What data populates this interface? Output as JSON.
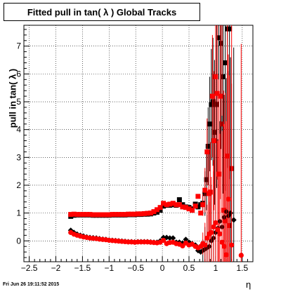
{
  "page": {
    "title": "Fitted pull in tan( λ )  Global Tracks",
    "timestamp": "Fri Jun 26 19:11:52 2015"
  },
  "chart_data": {
    "type": "scatter",
    "title": "Fitted pull in tan( λ )  Global Tracks",
    "xlabel": "η",
    "ylabel": "pull in tan( λ )",
    "xlim": [
      -2.6,
      1.7
    ],
    "ylim": [
      -0.75,
      7.75
    ],
    "xticks": [
      -2.5,
      -2,
      -1.5,
      -1,
      -0.5,
      0,
      0.5,
      1,
      1.5
    ],
    "xtick_labels": [
      "−2.5",
      "−2",
      "−1.5",
      "−1",
      "−0.5",
      "0",
      "0.5",
      "1",
      "1.5"
    ],
    "yticks": [
      0,
      1,
      2,
      3,
      4,
      5,
      6,
      7
    ],
    "ytick_labels": [
      "0",
      "1",
      "2",
      "3",
      "4",
      "5",
      "6",
      "7"
    ],
    "grid": true,
    "series": [
      {
        "color": "#000000",
        "marker": "square",
        "points": [
          [
            -1.72,
            0.88
          ],
          [
            -1.66,
            0.92
          ],
          [
            -1.6,
            0.93
          ],
          [
            -1.54,
            0.93
          ],
          [
            -1.48,
            0.93
          ],
          [
            -1.42,
            0.93
          ],
          [
            -1.36,
            0.93
          ],
          [
            -1.3,
            0.92
          ],
          [
            -1.24,
            0.92
          ],
          [
            -1.18,
            0.92
          ],
          [
            -1.12,
            0.92
          ],
          [
            -1.06,
            0.92
          ],
          [
            -1.0,
            0.92
          ],
          [
            -0.94,
            0.93
          ],
          [
            -0.88,
            0.93
          ],
          [
            -0.82,
            0.93
          ],
          [
            -0.76,
            0.93
          ],
          [
            -0.7,
            0.93
          ],
          [
            -0.64,
            0.94
          ],
          [
            -0.58,
            0.94
          ],
          [
            -0.52,
            0.94
          ],
          [
            -0.46,
            0.95
          ],
          [
            -0.4,
            0.95
          ],
          [
            -0.34,
            0.96
          ],
          [
            -0.28,
            0.96
          ],
          [
            -0.22,
            0.97
          ],
          [
            -0.16,
            1.0
          ],
          [
            -0.1,
            1.03
          ],
          [
            -0.04,
            1.1
          ],
          [
            0.02,
            1.25
          ],
          [
            0.08,
            1.28
          ],
          [
            0.14,
            1.28
          ],
          [
            0.2,
            1.3
          ],
          [
            0.26,
            1.28
          ],
          [
            0.32,
            1.48
          ],
          [
            0.38,
            1.3
          ],
          [
            0.44,
            1.22
          ],
          [
            0.5,
            1.2
          ],
          [
            0.56,
            1.15
          ],
          [
            0.62,
            1.32
          ],
          [
            0.67,
            1.22
          ],
          [
            0.72,
            1.3
          ],
          [
            0.76,
            1.35
          ],
          [
            0.8,
            1.7
          ],
          [
            0.83,
            2.2
          ],
          [
            0.86,
            3.4
          ],
          [
            0.89,
            4.2
          ],
          [
            0.92,
            4.9
          ],
          [
            0.95,
            5.0
          ],
          [
            0.98,
            3.9
          ],
          [
            1.02,
            4.9
          ],
          [
            1.06,
            7.3
          ],
          [
            1.1,
            7.1
          ],
          [
            1.14,
            5.9
          ],
          [
            1.18,
            6.4
          ],
          [
            1.22,
            7.62
          ],
          [
            1.26,
            7.62
          ]
        ]
      },
      {
        "color": "#ff0000",
        "marker": "square",
        "points": [
          [
            -1.72,
            0.95
          ],
          [
            -1.66,
            0.96
          ],
          [
            -1.6,
            0.95
          ],
          [
            -1.54,
            0.95
          ],
          [
            -1.48,
            0.95
          ],
          [
            -1.42,
            0.95
          ],
          [
            -1.36,
            0.95
          ],
          [
            -1.3,
            0.94
          ],
          [
            -1.24,
            0.94
          ],
          [
            -1.18,
            0.94
          ],
          [
            -1.12,
            0.94
          ],
          [
            -1.06,
            0.94
          ],
          [
            -1.0,
            0.94
          ],
          [
            -0.94,
            0.95
          ],
          [
            -0.88,
            0.95
          ],
          [
            -0.82,
            0.95
          ],
          [
            -0.76,
            0.95
          ],
          [
            -0.7,
            0.95
          ],
          [
            -0.64,
            0.96
          ],
          [
            -0.58,
            0.96
          ],
          [
            -0.52,
            0.96
          ],
          [
            -0.46,
            0.97
          ],
          [
            -0.4,
            0.97
          ],
          [
            -0.34,
            0.98
          ],
          [
            -0.28,
            0.99
          ],
          [
            -0.22,
            1.0
          ],
          [
            -0.16,
            1.05
          ],
          [
            -0.1,
            1.12
          ],
          [
            -0.04,
            1.2
          ],
          [
            0.02,
            1.35
          ],
          [
            0.08,
            1.3
          ],
          [
            0.14,
            1.32
          ],
          [
            0.2,
            1.35
          ],
          [
            0.26,
            1.3
          ],
          [
            0.32,
            1.3
          ],
          [
            0.38,
            1.22
          ],
          [
            0.44,
            1.2
          ],
          [
            0.5,
            1.15
          ],
          [
            0.56,
            1.1
          ],
          [
            0.62,
            1.25
          ],
          [
            0.67,
            1.6
          ],
          [
            0.72,
            1.0
          ],
          [
            0.76,
            1.3
          ],
          [
            0.8,
            1.82
          ],
          [
            0.84,
            3.2
          ],
          [
            0.87,
            1.7
          ],
          [
            0.9,
            1.75
          ],
          [
            0.94,
            5.2
          ],
          [
            0.97,
            3.6
          ],
          [
            1.0,
            5.9
          ],
          [
            1.03,
            5.3
          ],
          [
            1.06,
            2.4
          ],
          [
            1.09,
            5.2
          ],
          [
            1.12,
            4.2
          ],
          [
            1.15,
            1.1
          ],
          [
            1.18,
            0.72
          ],
          [
            1.22,
            3.05
          ],
          [
            1.26,
            0.55
          ],
          [
            1.3,
            2.6
          ]
        ]
      },
      {
        "color": "#000000",
        "marker": "diamond",
        "points": [
          [
            -1.72,
            0.38
          ],
          [
            -1.66,
            0.3
          ],
          [
            -1.6,
            0.24
          ],
          [
            -1.54,
            0.2
          ],
          [
            -1.48,
            0.17
          ],
          [
            -1.42,
            0.14
          ],
          [
            -1.36,
            0.12
          ],
          [
            -1.3,
            0.11
          ],
          [
            -1.24,
            0.1
          ],
          [
            -1.18,
            0.08
          ],
          [
            -1.12,
            0.06
          ],
          [
            -1.06,
            0.05
          ],
          [
            -1.0,
            0.03
          ],
          [
            -0.94,
            0.02
          ],
          [
            -0.88,
            0.01
          ],
          [
            -0.82,
            0.0
          ],
          [
            -0.76,
            -0.01
          ],
          [
            -0.7,
            -0.02
          ],
          [
            -0.64,
            -0.03
          ],
          [
            -0.58,
            -0.03
          ],
          [
            -0.52,
            -0.04
          ],
          [
            -0.46,
            -0.03
          ],
          [
            -0.4,
            -0.03
          ],
          [
            -0.34,
            -0.03
          ],
          [
            -0.28,
            -0.03
          ],
          [
            -0.22,
            -0.04
          ],
          [
            -0.16,
            -0.05
          ],
          [
            -0.1,
            -0.05
          ],
          [
            -0.04,
            0.0
          ],
          [
            0.02,
            0.12
          ],
          [
            0.08,
            0.12
          ],
          [
            0.14,
            0.1
          ],
          [
            0.2,
            0.1
          ],
          [
            0.26,
            -0.05
          ],
          [
            0.32,
            -0.05
          ],
          [
            0.38,
            -0.08
          ],
          [
            0.44,
            0.05
          ],
          [
            0.5,
            -0.05
          ],
          [
            0.56,
            -0.1
          ],
          [
            0.62,
            -0.15
          ],
          [
            0.67,
            -0.35
          ],
          [
            0.72,
            -0.4
          ],
          [
            0.76,
            -0.35
          ],
          [
            0.8,
            -0.3
          ],
          [
            0.84,
            -0.25
          ],
          [
            0.88,
            -0.2
          ],
          [
            0.92,
            0.0
          ],
          [
            0.96,
            0.1
          ],
          [
            1.0,
            0.3
          ],
          [
            1.04,
            0.45
          ],
          [
            1.08,
            0.7
          ],
          [
            1.12,
            0.5
          ],
          [
            1.16,
            0.85
          ],
          [
            1.2,
            1.05
          ],
          [
            1.24,
            0.9
          ],
          [
            1.28,
            1.0
          ],
          [
            1.34,
            0.75
          ]
        ]
      },
      {
        "color": "#ff0000",
        "marker": "circle",
        "points": [
          [
            -1.72,
            0.3
          ],
          [
            -1.66,
            0.24
          ],
          [
            -1.6,
            0.2
          ],
          [
            -1.54,
            0.17
          ],
          [
            -1.48,
            0.14
          ],
          [
            -1.42,
            0.12
          ],
          [
            -1.36,
            0.1
          ],
          [
            -1.3,
            0.09
          ],
          [
            -1.24,
            0.08
          ],
          [
            -1.18,
            0.06
          ],
          [
            -1.12,
            0.05
          ],
          [
            -1.06,
            0.04
          ],
          [
            -1.0,
            0.02
          ],
          [
            -0.94,
            0.01
          ],
          [
            -0.88,
            0.0
          ],
          [
            -0.82,
            -0.01
          ],
          [
            -0.76,
            -0.02
          ],
          [
            -0.7,
            -0.03
          ],
          [
            -0.64,
            -0.04
          ],
          [
            -0.58,
            -0.04
          ],
          [
            -0.52,
            -0.05
          ],
          [
            -0.46,
            -0.04
          ],
          [
            -0.4,
            -0.04
          ],
          [
            -0.34,
            -0.04
          ],
          [
            -0.28,
            -0.04
          ],
          [
            -0.22,
            -0.05
          ],
          [
            -0.16,
            -0.06
          ],
          [
            -0.1,
            -0.07
          ],
          [
            -0.04,
            -0.05
          ],
          [
            0.02,
            0.02
          ],
          [
            0.08,
            -0.1
          ],
          [
            0.14,
            -0.06
          ],
          [
            0.2,
            -0.05
          ],
          [
            0.26,
            -0.1
          ],
          [
            0.32,
            -0.12
          ],
          [
            0.38,
            -0.18
          ],
          [
            0.44,
            -0.08
          ],
          [
            0.5,
            -0.15
          ],
          [
            0.56,
            -0.12
          ],
          [
            0.62,
            -0.2
          ],
          [
            0.67,
            -0.25
          ],
          [
            0.72,
            -0.2
          ],
          [
            0.76,
            -0.1
          ],
          [
            0.8,
            -0.15
          ],
          [
            0.84,
            0.1
          ],
          [
            0.88,
            0.25
          ],
          [
            0.92,
            0.3
          ],
          [
            0.96,
            0.5
          ],
          [
            1.0,
            0.65
          ],
          [
            1.04,
            0.4
          ],
          [
            1.08,
            0.25
          ],
          [
            1.12,
            -0.05
          ],
          [
            1.16,
            -0.2
          ],
          [
            1.2,
            -0.5
          ],
          [
            1.24,
            1.5
          ],
          [
            1.3,
            -0.15
          ],
          [
            1.48,
            -0.52
          ]
        ]
      }
    ]
  }
}
